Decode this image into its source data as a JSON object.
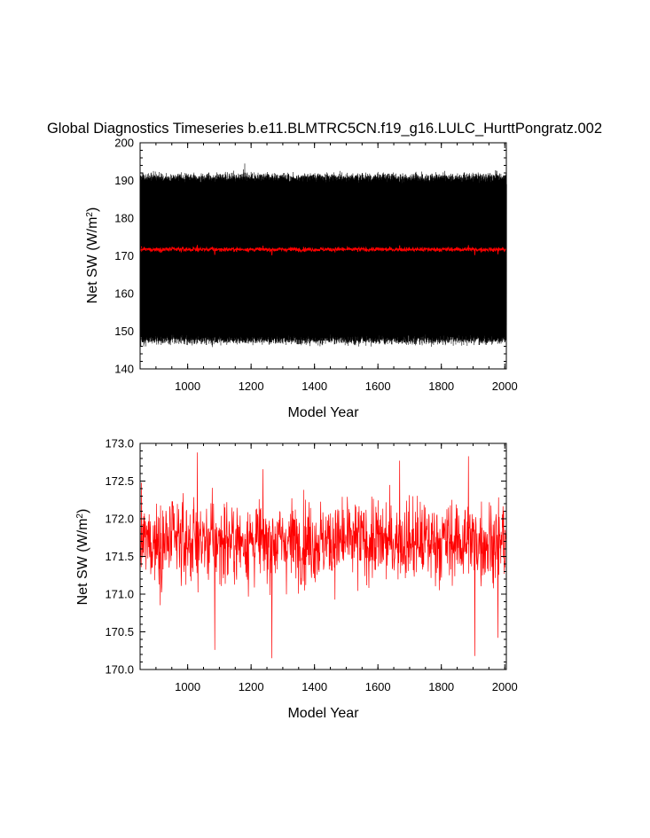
{
  "figure": {
    "title": "Global Diagnostics Timeseries b.e11.BLMTRC5CN.f19_g16.LULC_HurttPongratz.002"
  },
  "chart_data": [
    {
      "type": "line",
      "xlabel": "Model Year",
      "ylabel_main": "Net SW (W/m",
      "ylabel_sup": "2",
      "ylabel_close": ")",
      "xlim": [
        850,
        2005
      ],
      "ylim": [
        140,
        200
      ],
      "x_ticks": [
        1000,
        1200,
        1400,
        1600,
        1800,
        2000
      ],
      "y_ticks": [
        "140",
        "150",
        "160",
        "170",
        "180",
        "190",
        "200"
      ],
      "series": [
        {
          "color": "#000000",
          "kind": "monthly",
          "x_range": [
            850,
            2005
          ],
          "seasonal_cycle_min": 147.5,
          "seasonal_cycle_max": 191.0,
          "max_value": 194.5,
          "max_at_year": 1180,
          "min_value": 145.8
        },
        {
          "color": "#ff0000",
          "kind": "annual-mean",
          "x_range": [
            850,
            2005
          ],
          "mean": 171.7,
          "range": [
            170.15,
            172.9
          ]
        }
      ]
    },
    {
      "type": "line",
      "xlabel": "Model Year",
      "ylabel_main": "Net SW (W/m",
      "ylabel_sup": "2",
      "ylabel_close": ")",
      "xlim": [
        850,
        2005
      ],
      "ylim": [
        170.0,
        173.0
      ],
      "x_ticks": [
        1000,
        1200,
        1400,
        1600,
        1800,
        2000
      ],
      "y_ticks": [
        "170.0",
        "170.5",
        "171.0",
        "171.5",
        "172.0",
        "172.5",
        "173.0"
      ],
      "series": [
        {
          "color": "#ff0000",
          "kind": "annual-mean",
          "x_range": [
            850,
            2005
          ],
          "mean": 171.7,
          "noise_std": 0.34,
          "anchors": [
            {
              "x": 1030,
              "y": 172.88
            },
            {
              "x": 1085,
              "y": 170.26
            },
            {
              "x": 1265,
              "y": 170.15
            },
            {
              "x": 1668,
              "y": 172.77
            },
            {
              "x": 1885,
              "y": 172.83
            },
            {
              "x": 1905,
              "y": 170.18
            },
            {
              "x": 1978,
              "y": 170.42
            }
          ]
        }
      ]
    }
  ]
}
